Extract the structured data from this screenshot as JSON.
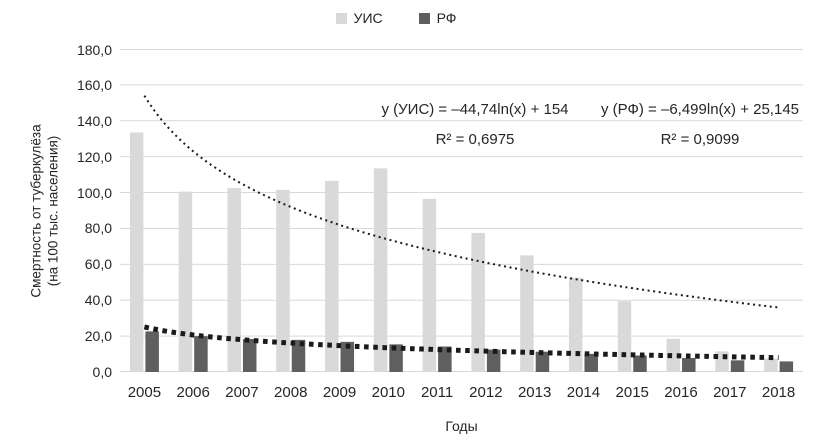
{
  "chart_data": {
    "type": "bar",
    "title": "",
    "categories": [
      "2005",
      "2006",
      "2007",
      "2008",
      "2009",
      "2010",
      "2011",
      "2012",
      "2013",
      "2014",
      "2015",
      "2016",
      "2017",
      "2018"
    ],
    "series": [
      {
        "name": "УИС",
        "color": "#d9d9d9",
        "values": [
          133.5,
          100.5,
          102.5,
          101.5,
          106.5,
          113.5,
          96.5,
          77.5,
          65.0,
          52.5,
          39.5,
          18.5,
          11.5,
          7.5
        ]
      },
      {
        "name": "РФ",
        "color": "#5f5f5f",
        "values": [
          22.6,
          20.0,
          18.4,
          17.9,
          16.8,
          15.4,
          14.2,
          12.5,
          11.3,
          10.1,
          9.2,
          7.8,
          6.5,
          5.9
        ]
      }
    ],
    "xlabel": "Годы",
    "ylabel_line1": "Смертность от туберкулёза",
    "ylabel_line2": "(на 100 тыс. населения)",
    "y_ticks": [
      "0,0",
      "20,0",
      "40,0",
      "60,0",
      "80,0",
      "100,0",
      "120,0",
      "140,0",
      "160,0",
      "180,0"
    ],
    "ylim": [
      0,
      180
    ],
    "grid": true,
    "gridline_color": "#d9d9d9",
    "legend_position": "top-center",
    "trendlines": [
      {
        "series": "УИС",
        "type": "logarithmic",
        "a": -44.74,
        "b": 154,
        "equation": "y (УИС) = –44,74ln(x) + 154",
        "r2_label": "R² = 0,6975",
        "style": "dotted-thin",
        "color": "#1a1a1a"
      },
      {
        "series": "РФ",
        "type": "logarithmic",
        "a": -6.499,
        "b": 25.145,
        "equation": "y (РФ) = –6,499ln(x) + 25,145",
        "r2_label": "R² = 0,9099",
        "style": "dotted-thick",
        "color": "#1a1a1a"
      }
    ]
  }
}
